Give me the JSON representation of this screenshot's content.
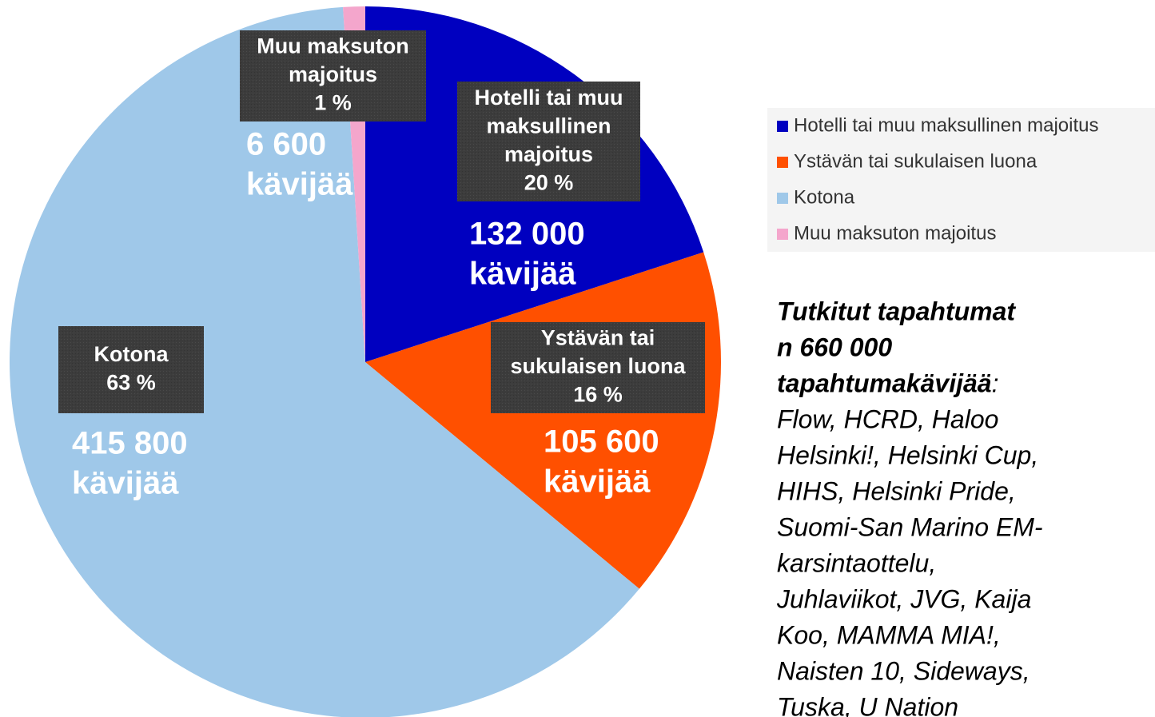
{
  "chart_data": {
    "type": "pie",
    "categories": [
      "Hotelli tai muu maksullinen majoitus",
      "Ystävän tai sukulaisen luona",
      "Kotona",
      "Muu maksuton majoitus"
    ],
    "values": [
      20,
      16,
      63,
      1
    ],
    "value_labels": [
      "20 %",
      "16 %",
      "63 %",
      "1 %"
    ],
    "colors": [
      "#0000c0",
      "#ff5000",
      "#9fc8e9",
      "#f4a6cc"
    ],
    "slice_labels": [
      [
        "Hotelli tai muu",
        "maksullinen",
        "majoitus"
      ],
      [
        "Ystävän tai",
        "sukulaisen luona"
      ],
      [
        "Kotona"
      ],
      [
        "Muu maksuton",
        "majoitus"
      ]
    ],
    "annotations": [
      [
        "132 000",
        "kävijää"
      ],
      [
        "105 600",
        "kävijää"
      ],
      [
        "415 800",
        "kävijää"
      ],
      [
        "6 600",
        "kävijää"
      ]
    ],
    "legend": "right"
  },
  "note": {
    "lines": [
      "Tutkitut tapahtumat",
      "n 660 000",
      "tapahtumakävijää",
      ":",
      "Flow, HCRD, Haloo",
      "Helsinki!, Helsinki Cup,",
      "HIHS, Helsinki Pride,",
      "Suomi-San Marino EM-",
      "karsintaottelu,",
      "Juhlaviikot, JVG, Kaija",
      "Koo, MAMMA MIA!,",
      "Naisten 10, Sideways,",
      "Tuska, U Nation"
    ]
  }
}
